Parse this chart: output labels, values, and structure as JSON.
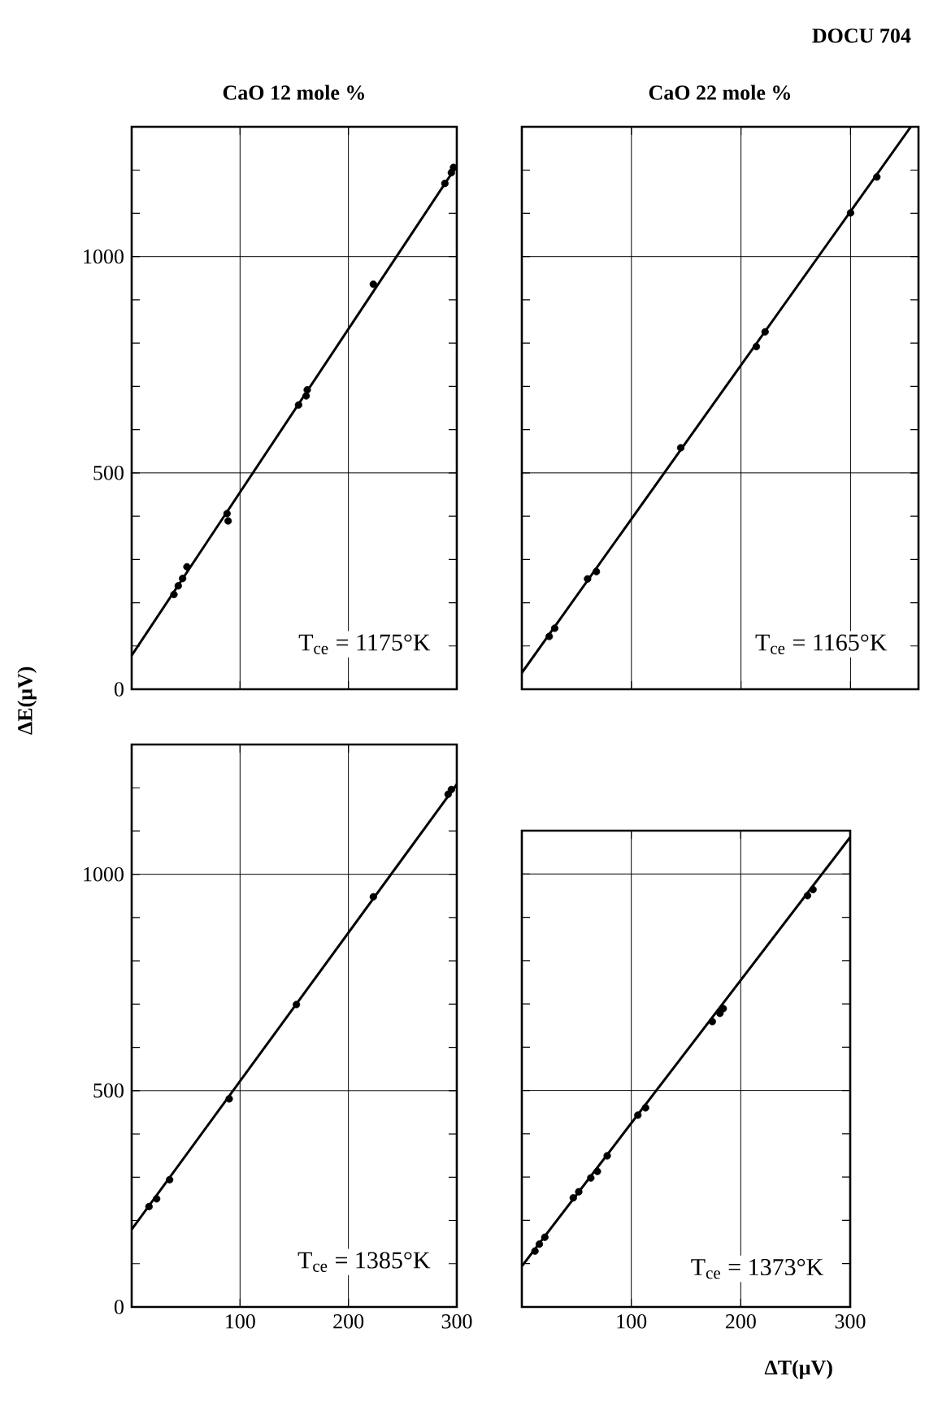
{
  "chart_data": [
    {
      "type": "scatter",
      "title": "CaO 12 mole %",
      "ylabel": "ΔE(μV)",
      "xlim": [
        0,
        300
      ],
      "ylim": [
        0,
        1300
      ],
      "xticks": [
        100,
        200,
        300
      ],
      "yticks": [
        0,
        500,
        1000,
        {
          "value": 100,
          "label": null
        },
        {
          "value": 200,
          "label": null
        },
        {
          "value": 300,
          "label": null
        },
        {
          "value": 400,
          "label": null
        },
        {
          "value": 600,
          "label": null
        },
        {
          "value": 700,
          "label": null
        },
        {
          "value": 800,
          "label": null
        },
        {
          "value": 900,
          "label": null
        },
        {
          "value": 1100,
          "label": null
        },
        {
          "value": 1200,
          "label": null
        }
      ],
      "grid": true,
      "tick_labels": "y",
      "marker": "circle",
      "series": [
        {
          "color": "#000000",
          "x": [
            39,
            43,
            47,
            51,
            88,
            89,
            154,
            161,
            162,
            223,
            289,
            295,
            297
          ],
          "values": [
            219,
            239,
            256,
            283,
            406,
            389,
            657,
            678,
            692,
            936,
            1169,
            1194,
            1206
          ]
        },
        {
          "type": "line",
          "marker": "none",
          "color": "#000000",
          "x": [
            0,
            300
          ],
          "values": [
            78,
            1210
          ]
        }
      ],
      "annotations": [
        "T$_{ce}$ = 1175°K"
      ]
    },
    {
      "type": "scatter",
      "title": "CaO 22 mole %",
      "xlim": [
        0,
        362
      ],
      "ylim": [
        0,
        1300
      ],
      "xticks": [
        100,
        200,
        300
      ],
      "yticks": [
        0,
        500,
        1000,
        {
          "value": 100,
          "label": null
        },
        {
          "value": 200,
          "label": null
        },
        {
          "value": 300,
          "label": null
        },
        {
          "value": 400,
          "label": null
        },
        {
          "value": 600,
          "label": null
        },
        {
          "value": 700,
          "label": null
        },
        {
          "value": 800,
          "label": null
        },
        {
          "value": 900,
          "label": null
        },
        {
          "value": 1100,
          "label": null
        },
        {
          "value": 1200,
          "label": null
        }
      ],
      "grid": true,
      "tick_labels": false,
      "marker": "circle",
      "series": [
        {
          "color": "#000000",
          "x": [
            25,
            30,
            60,
            68,
            145,
            214,
            222,
            300,
            324
          ],
          "values": [
            122,
            141,
            255,
            272,
            558,
            792,
            826,
            1101,
            1184
          ]
        },
        {
          "type": "line",
          "marker": "none",
          "color": "#000000",
          "x": [
            0,
            355
          ],
          "values": [
            38,
            1300
          ]
        }
      ],
      "annotations": [
        "DOCU 704",
        "T$_{ce}$ = 1165°K"
      ]
    },
    {
      "type": "scatter",
      "xlim": [
        0,
        300
      ],
      "ylim": [
        0,
        1300
      ],
      "xticks": [
        100,
        200,
        300
      ],
      "yticks": [
        0,
        500,
        1000,
        {
          "value": 100,
          "label": null
        },
        {
          "value": 200,
          "label": null
        },
        {
          "value": 300,
          "label": null
        },
        {
          "value": 400,
          "label": null
        },
        {
          "value": 600,
          "label": null
        },
        {
          "value": 700,
          "label": null
        },
        {
          "value": 800,
          "label": null
        },
        {
          "value": 900,
          "label": null
        },
        {
          "value": 1100,
          "label": null
        },
        {
          "value": 1200,
          "label": null
        }
      ],
      "grid": true,
      "marker": "circle",
      "series": [
        {
          "color": "#000000",
          "x": [
            16,
            23,
            35,
            90,
            152,
            223,
            292,
            295
          ],
          "values": [
            232,
            250,
            294,
            481,
            699,
            948,
            1185,
            1196
          ]
        },
        {
          "type": "line",
          "marker": "none",
          "color": "#000000",
          "x": [
            0,
            300
          ],
          "values": [
            179,
            1208
          ]
        }
      ],
      "annotations": [
        "T$_{ce}$ = 1385°K"
      ]
    },
    {
      "type": "scatter",
      "xlabel": "ΔT(μV)",
      "xlim": [
        0,
        300
      ],
      "ylim": [
        0,
        1100
      ],
      "xticks": [
        100,
        200,
        300
      ],
      "yticks": [
        0,
        500,
        1000,
        {
          "value": 100,
          "label": null
        },
        {
          "value": 200,
          "label": null
        },
        {
          "value": 300,
          "label": null
        },
        {
          "value": 400,
          "label": null
        },
        {
          "value": 600,
          "label": null
        },
        {
          "value": 700,
          "label": null
        },
        {
          "value": 800,
          "label": null
        },
        {
          "value": 900,
          "label": null
        }
      ],
      "grid": true,
      "tick_labels": "x",
      "marker": "circle",
      "series": [
        {
          "color": "#000000",
          "x": [
            12,
            16,
            21,
            47,
            52,
            63,
            69,
            78,
            106,
            113,
            174,
            181,
            184,
            261,
            266
          ],
          "values": [
            129,
            145,
            161,
            252,
            266,
            298,
            313,
            349,
            443,
            460,
            659,
            678,
            689,
            950,
            964
          ]
        },
        {
          "type": "line",
          "marker": "none",
          "color": "#000000",
          "x": [
            0,
            300
          ],
          "values": [
            94,
            1085
          ]
        }
      ],
      "annotations": [
        "T$_{ce}$ = 1373°K"
      ]
    }
  ]
}
